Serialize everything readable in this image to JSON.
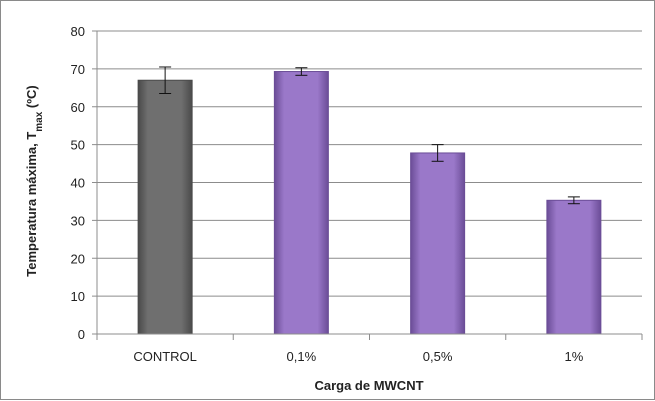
{
  "chart_data": {
    "type": "bar",
    "categories": [
      "CONTROL",
      "0,1%",
      "0,5%",
      "1%"
    ],
    "values": [
      67,
      69.3,
      47.8,
      35.3
    ],
    "errors": [
      3.5,
      1.0,
      2.2,
      0.9
    ],
    "bar_colors": [
      "#6f6f6f",
      "#9a78c9",
      "#9a78c9",
      "#9a78c9"
    ],
    "bar_edge_colors": [
      "#4a4a4a",
      "#6b4d97",
      "#6b4d97",
      "#6b4d97"
    ],
    "xlabel": "Carga de MWCNT",
    "ylabel": {
      "prefix": "Temperatura máxima, T",
      "subscript": "max",
      "suffix": " (ºC)"
    },
    "ylim": [
      0,
      80
    ],
    "yticks": [
      0,
      10,
      20,
      30,
      40,
      50,
      60,
      70,
      80
    ],
    "grid": true,
    "legend": "none"
  }
}
